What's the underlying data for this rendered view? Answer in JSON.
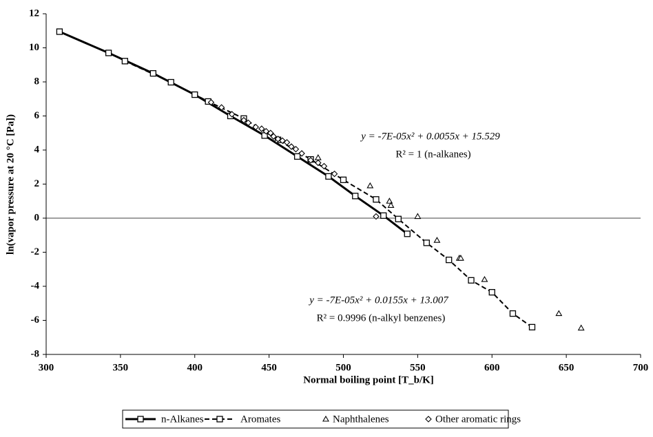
{
  "chart_data": {
    "type": "scatter",
    "xlabel": "Normal boiling point [T_b/K]",
    "ylabel": "ln(vapor pressure at 20 °C [Pa])",
    "xlim": [
      300,
      700
    ],
    "xticks": [
      300,
      350,
      400,
      450,
      500,
      550,
      600,
      650,
      700
    ],
    "ylim": [
      -8,
      12
    ],
    "yticks": [
      -8,
      -6,
      -4,
      -2,
      0,
      2,
      4,
      6,
      8,
      10,
      12
    ],
    "legend": "bottom",
    "annotations": [
      "y = -7E-05x² + 0.0055x + 15.529",
      "R² = 1 (n-alkanes)",
      "y = -7E-05x² + 0.0155x + 13.007",
      "R² = 0.9996 (n-alkyl benzenes)"
    ],
    "series": [
      {
        "name": "n-Alkanes",
        "color": "#000000",
        "marker": "square",
        "line": "solid",
        "x": [
          309,
          342,
          372,
          400,
          424,
          447,
          469,
          490,
          508,
          527,
          543
        ],
        "values": [
          10.95,
          9.7,
          8.5,
          7.25,
          6.0,
          4.85,
          3.62,
          2.45,
          1.3,
          0.15,
          -0.92
        ]
      },
      {
        "name": "Aromates",
        "color": "#000000",
        "marker": "square",
        "line": "dashed",
        "x": [
          353,
          384,
          409,
          433,
          456,
          478,
          500,
          522,
          537,
          556,
          571,
          586,
          600,
          614,
          627
        ],
        "values": [
          9.22,
          7.98,
          6.85,
          5.85,
          4.6,
          3.45,
          2.25,
          1.1,
          -0.05,
          -1.45,
          -2.45,
          -3.65,
          -4.35,
          -5.6,
          -6.4
        ]
      },
      {
        "name": "Naphthalenes",
        "color": "#000000",
        "marker": "triangle",
        "line": "none",
        "x": [
          483,
          518,
          531,
          532,
          550,
          563,
          578,
          579,
          595,
          645,
          660
        ],
        "values": [
          3.55,
          1.9,
          1.0,
          0.75,
          0.1,
          -1.3,
          -2.35,
          -2.35,
          -3.6,
          -5.6,
          -6.45
        ]
      },
      {
        "name": "Other aromatic rings",
        "color": "#000000",
        "marker": "diamond",
        "line": "none",
        "x": [
          411,
          418,
          425,
          433,
          436,
          441,
          445,
          448,
          451,
          453,
          456,
          459,
          462,
          465,
          468,
          472,
          478,
          483,
          487,
          494,
          522
        ],
        "values": [
          6.8,
          6.5,
          6.1,
          5.75,
          5.6,
          5.35,
          5.25,
          5.1,
          5.0,
          4.8,
          4.65,
          4.55,
          4.45,
          4.2,
          4.05,
          3.8,
          3.4,
          3.25,
          3.05,
          2.6,
          0.1
        ]
      }
    ]
  }
}
